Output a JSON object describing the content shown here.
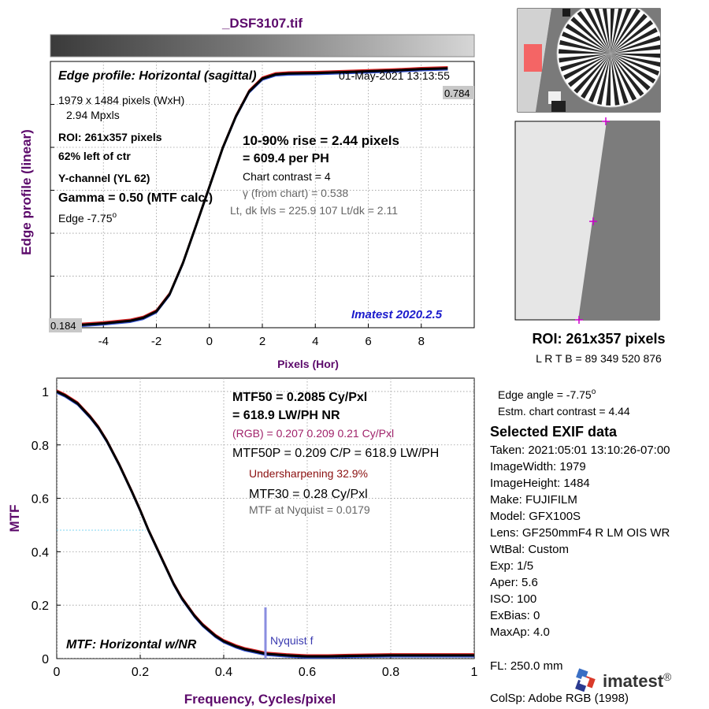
{
  "file_title": "_DSF3107.tif",
  "colors": {
    "title": "#5c0a6b",
    "axis_label": "#5c0a6b",
    "edge_curve": "#000000",
    "red_trace": "#d62020",
    "blue_trace": "#3050d0",
    "nyquist": "#8a8ee0",
    "version": "#1a1acc",
    "rgb_text": "#a0226a",
    "warn_text": "#8b1010",
    "gray_text": "#555555",
    "marker": "#cc00cc"
  },
  "edge_panel": {
    "title": "Edge profile: Horizontal (sagittal)",
    "datetime": "01-May-2021 13:13:55",
    "dims": "1979 x 1484 pixels (WxH)",
    "mpxls": "2.94 Mpxls",
    "roi": "ROI:  261x357 pixels",
    "roi_pos": "62% left of ctr",
    "channel": "Y-channel  (YL 62)",
    "gamma": "Gamma = 0.50 (MTF calc.)",
    "edge_angle": "Edge  -7.75",
    "edge_angle_sup": "o",
    "rise": "10-90% rise = 2.44 pixels",
    "per_ph": "=  609.4 per PH",
    "chart_contrast": "Chart contrast = 4",
    "gamma_chart": "γ (from chart) = 0.538",
    "levels": "Lt, dk lvls = 225.9  107  Lt/dk = 2.11",
    "version": "Imatest 2020.2.5",
    "high_level": "0.784",
    "low_level": "0.184",
    "ylabel": "Edge profile (linear)",
    "xlabel": "Pixels (Hor)"
  },
  "mtf_panel": {
    "mtf50": "MTF50 = 0.2085 Cy/Pxl",
    "lwph": "= 618.9 LW/PH  NR",
    "rgb": "(RGB) = 0.207  0.209  0.21 Cy/Pxl",
    "mtf50p": "MTF50P = 0.209 C/P = 618.9 LW/PH",
    "undersharp": "Undersharpening 32.9%",
    "mtf30": "MTF30 = 0.28 Cy/Pxl",
    "nyq": "MTF at Nyquist = 0.0179",
    "label": "MTF: Horizontal w/NR",
    "nyquist_label": "Nyquist f",
    "ylabel": "MTF",
    "xlabel": "Frequency, Cycles/pixel"
  },
  "roi_info": {
    "title": "ROI:  261x357 pixels",
    "coords": "L R  T B = 89 349  520 876"
  },
  "stats": {
    "edge_angle": "Edge angle = -7.75",
    "edge_angle_sup": "o",
    "contrast": "Estm. chart contrast = 4.44"
  },
  "exif": {
    "title": "Selected EXIF data",
    "lines": [
      "Taken: 2021:05:01 13:10:26-07:00",
      "ImageWidth:  1979",
      "ImageHeight:  1484",
      "Make:  FUJIFILM",
      "Model:  GFX100S",
      "Lens:   GF250mmF4 R LM OIS WR",
      "WtBal:  Custom",
      "Exp:    1/5",
      "Aper:    5.6",
      "ISO:     100",
      "ExBias:  0",
      "MaxAp:  4.0",
      "FL:     250.0 mm",
      "ColSp:  Adobe RGB (1998)"
    ]
  },
  "logo": {
    "text": "imatest",
    "mark": "®"
  },
  "chart_data": [
    {
      "type": "line",
      "title": "Edge profile: Horizontal (sagittal)",
      "xlabel": "Pixels (Hor)",
      "ylabel": "Edge profile (linear)",
      "xlim": [
        -6,
        10
      ],
      "ylim": [
        0.18,
        0.8
      ],
      "xticks": [
        -4,
        -2,
        0,
        2,
        4,
        6,
        8
      ],
      "grid": true,
      "series": [
        {
          "x": [
            -6,
            -5,
            -4,
            -3,
            -2.5,
            -2,
            -1.5,
            -1,
            -0.5,
            0,
            0.5,
            1,
            1.5,
            2,
            2.5,
            3,
            4,
            5,
            6,
            7,
            8,
            9
          ],
          "y": [
            0.184,
            0.186,
            0.19,
            0.196,
            0.203,
            0.218,
            0.258,
            0.33,
            0.418,
            0.508,
            0.598,
            0.672,
            0.73,
            0.76,
            0.77,
            0.772,
            0.773,
            0.775,
            0.777,
            0.779,
            0.782,
            0.784
          ]
        }
      ]
    },
    {
      "type": "line",
      "title": "MTF: Horizontal w/NR",
      "xlabel": "Frequency, Cycles/pixel",
      "ylabel": "MTF",
      "xlim": [
        0,
        1
      ],
      "ylim": [
        0,
        1.05
      ],
      "xticks": [
        0,
        0.2,
        0.4,
        0.6,
        0.8,
        1
      ],
      "yticks": [
        0,
        0.2,
        0.4,
        0.6,
        0.8,
        1
      ],
      "grid": true,
      "nyquist": 0.5,
      "series": [
        {
          "x": [
            0,
            0.02,
            0.05,
            0.08,
            0.1,
            0.12,
            0.15,
            0.18,
            0.2,
            0.22,
            0.25,
            0.28,
            0.3,
            0.33,
            0.35,
            0.38,
            0.4,
            0.43,
            0.45,
            0.48,
            0.5,
            0.55,
            0.6,
            0.65,
            0.7,
            0.8,
            0.9,
            1.0
          ],
          "y": [
            1.0,
            0.985,
            0.955,
            0.905,
            0.865,
            0.815,
            0.725,
            0.625,
            0.555,
            0.48,
            0.38,
            0.28,
            0.225,
            0.16,
            0.125,
            0.085,
            0.065,
            0.045,
            0.035,
            0.025,
            0.018,
            0.012,
            0.008,
            0.008,
            0.01,
            0.012,
            0.012,
            0.012
          ]
        }
      ]
    }
  ]
}
